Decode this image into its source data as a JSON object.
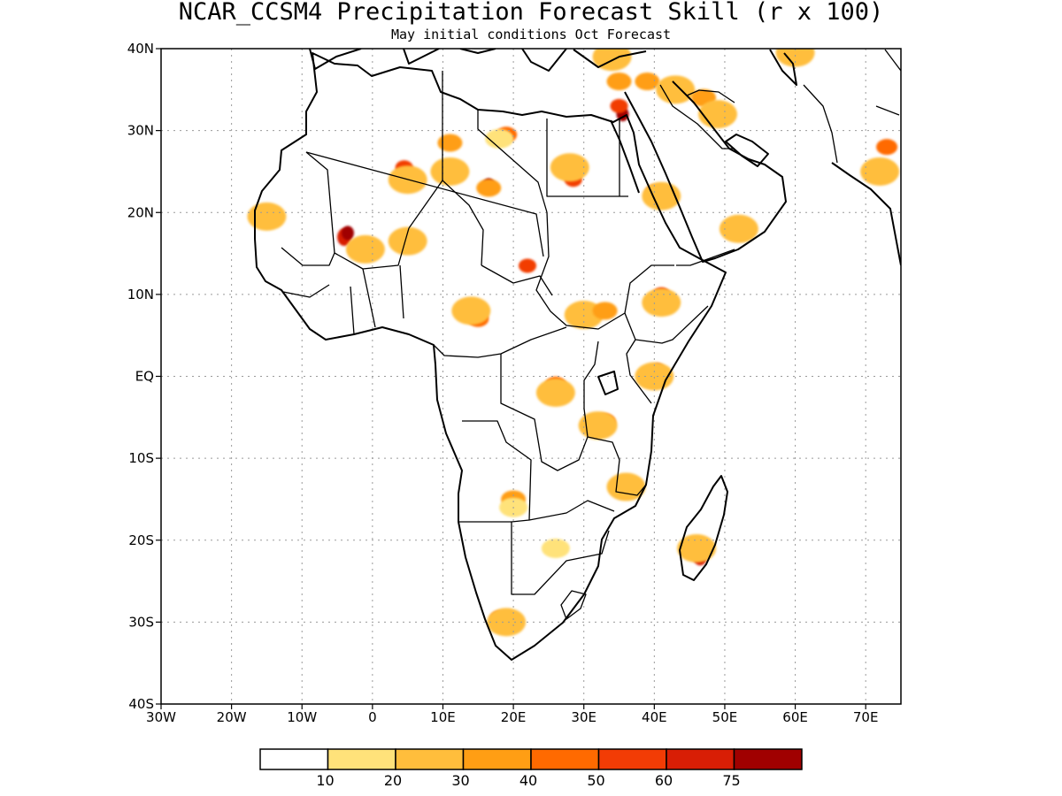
{
  "title": "NCAR_CCSM4 Precipitation Forecast Skill (r x 100)",
  "subtitle": "May initial conditions  Oct Forecast",
  "chart_data": {
    "type": "heatmap",
    "variable": "Precipitation Forecast Skill (r x 100)",
    "model": "NCAR_CCSM4",
    "initial_conditions": "May",
    "forecast_month": "Oct",
    "lon_range": [
      -30,
      75
    ],
    "lat_range": [
      -40,
      40
    ],
    "x_ticks": [
      {
        "value": -30,
        "label": "30W"
      },
      {
        "value": -20,
        "label": "20W"
      },
      {
        "value": -10,
        "label": "10W"
      },
      {
        "value": 0,
        "label": "0"
      },
      {
        "value": 10,
        "label": "10E"
      },
      {
        "value": 20,
        "label": "20E"
      },
      {
        "value": 30,
        "label": "30E"
      },
      {
        "value": 40,
        "label": "40E"
      },
      {
        "value": 50,
        "label": "50E"
      },
      {
        "value": 60,
        "label": "60E"
      },
      {
        "value": 70,
        "label": "70E"
      }
    ],
    "y_ticks": [
      {
        "value": 40,
        "label": "40N"
      },
      {
        "value": 30,
        "label": "30N"
      },
      {
        "value": 20,
        "label": "20N"
      },
      {
        "value": 10,
        "label": "10N"
      },
      {
        "value": 0,
        "label": "EQ"
      },
      {
        "value": -10,
        "label": "10S"
      },
      {
        "value": -20,
        "label": "20S"
      },
      {
        "value": -30,
        "label": "30S"
      },
      {
        "value": -40,
        "label": "40S"
      }
    ],
    "grid": true,
    "colorbar": {
      "thresholds": [
        "10",
        "20",
        "30",
        "40",
        "50",
        "60",
        "75"
      ],
      "colors": [
        "#ffffff",
        "#ffe27a",
        "#ffbe3c",
        "#ff9e14",
        "#ff6a00",
        "#f23c05",
        "#d81e05",
        "#a00000"
      ]
    },
    "skill_regions": [
      {
        "lon": -15,
        "lat": 19.5,
        "level": 2
      },
      {
        "lon": -4,
        "lat": 17,
        "level": 6
      },
      {
        "lon": -3.5,
        "lat": 17.5,
        "level": 7
      },
      {
        "lon": -1,
        "lat": 15.5,
        "level": 2
      },
      {
        "lon": 4.5,
        "lat": 25.5,
        "level": 5
      },
      {
        "lon": 5,
        "lat": 24,
        "level": 2
      },
      {
        "lon": 5,
        "lat": 16.5,
        "level": 2
      },
      {
        "lon": 11,
        "lat": 28.5,
        "level": 3
      },
      {
        "lon": 11,
        "lat": 25,
        "level": 2
      },
      {
        "lon": 16.5,
        "lat": 23.3,
        "level": 7
      },
      {
        "lon": 16.5,
        "lat": 23,
        "level": 3
      },
      {
        "lon": 19,
        "lat": 29.5,
        "level": 4
      },
      {
        "lon": 18,
        "lat": 29,
        "level": 1
      },
      {
        "lon": 22,
        "lat": 13.5,
        "level": 5
      },
      {
        "lon": 15,
        "lat": 7,
        "level": 4
      },
      {
        "lon": 14,
        "lat": 8,
        "level": 2
      },
      {
        "lon": 28.5,
        "lat": 24,
        "level": 5
      },
      {
        "lon": 28,
        "lat": 25.5,
        "level": 2
      },
      {
        "lon": 30,
        "lat": 7.5,
        "level": 2
      },
      {
        "lon": 33,
        "lat": 8,
        "level": 3
      },
      {
        "lon": 35.5,
        "lat": 32,
        "level": 7
      },
      {
        "lon": 35,
        "lat": 33,
        "level": 5
      },
      {
        "lon": 35,
        "lat": 36,
        "level": 3
      },
      {
        "lon": 34,
        "lat": 39,
        "level": 2
      },
      {
        "lon": 39,
        "lat": 36,
        "level": 3
      },
      {
        "lon": 43,
        "lat": 35,
        "level": 2
      },
      {
        "lon": 47,
        "lat": 34,
        "level": 3
      },
      {
        "lon": 49,
        "lat": 32,
        "level": 2
      },
      {
        "lon": 40,
        "lat": 22.5,
        "level": 5
      },
      {
        "lon": 41,
        "lat": 22,
        "level": 2
      },
      {
        "lon": 52,
        "lat": 18,
        "level": 2
      },
      {
        "lon": 73,
        "lat": 28,
        "level": 4
      },
      {
        "lon": 72,
        "lat": 25,
        "level": 2
      },
      {
        "lon": 41,
        "lat": 10,
        "level": 5
      },
      {
        "lon": 41,
        "lat": 9,
        "level": 2
      },
      {
        "lon": 40.5,
        "lat": 0.5,
        "level": 6
      },
      {
        "lon": 40,
        "lat": 0,
        "level": 2
      },
      {
        "lon": 26,
        "lat": -1,
        "level": 4
      },
      {
        "lon": 26,
        "lat": -2,
        "level": 2
      },
      {
        "lon": 33,
        "lat": -5.5,
        "level": 4
      },
      {
        "lon": 32,
        "lat": -6,
        "level": 2
      },
      {
        "lon": 20,
        "lat": -15,
        "level": 3
      },
      {
        "lon": 20,
        "lat": -16,
        "level": 1
      },
      {
        "lon": 26,
        "lat": -21,
        "level": 1
      },
      {
        "lon": 36,
        "lat": -13.5,
        "level": 2
      },
      {
        "lon": 46.5,
        "lat": -22,
        "level": 6
      },
      {
        "lon": 46,
        "lat": -21,
        "level": 2
      },
      {
        "lon": 18,
        "lat": -29.5,
        "level": 5
      },
      {
        "lon": 19,
        "lat": -30,
        "level": 2
      },
      {
        "lon": 60,
        "lat": 39.5,
        "level": 2
      }
    ]
  }
}
